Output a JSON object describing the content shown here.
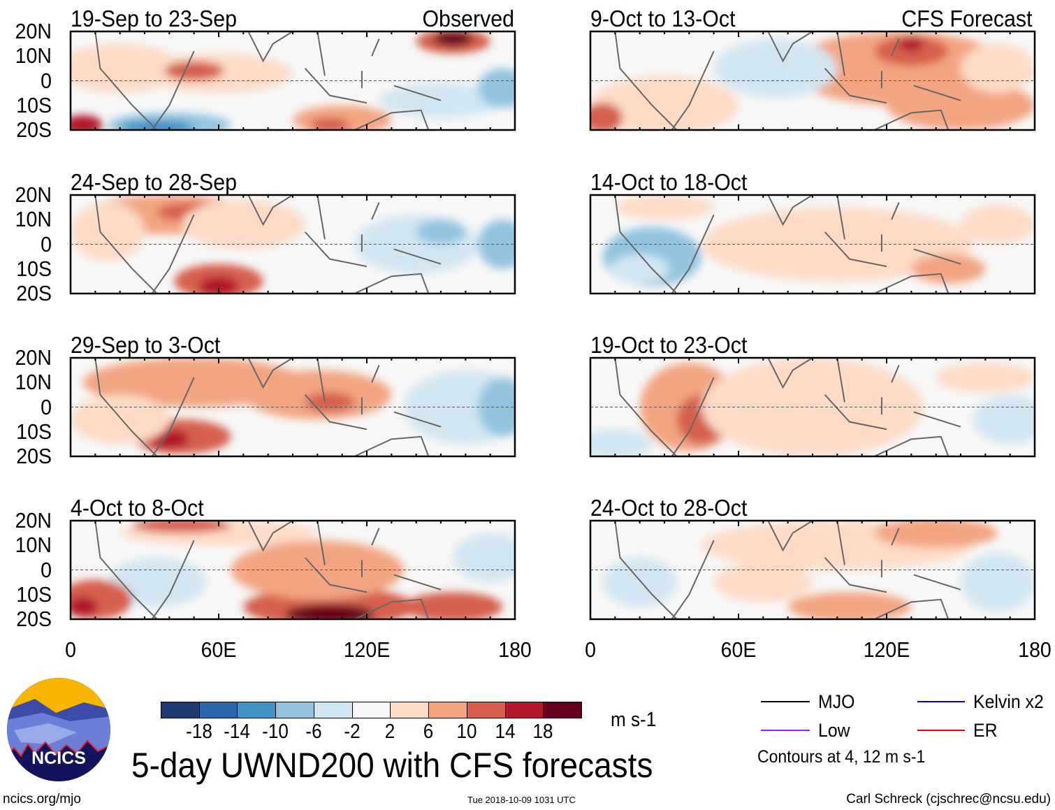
{
  "chart_data": {
    "type": "heatmap",
    "title": "5-day UWND200 with CFS forecasts",
    "variable": "200-hPa zonal wind anomaly",
    "units": "m s-1",
    "column_labels": {
      "left": "Observed",
      "right": "CFS Forecast"
    },
    "lat_ticks": [
      "20N",
      "10N",
      "0",
      "10S",
      "20S"
    ],
    "lon_ticks": [
      "0",
      "60E",
      "120E",
      "180"
    ],
    "xlim": [
      0,
      180
    ],
    "ylim": [
      -20,
      20
    ],
    "panels": [
      {
        "title": "19-Sep to 23-Sep",
        "column": "left"
      },
      {
        "title": "24-Sep to 28-Sep",
        "column": "left"
      },
      {
        "title": "29-Sep to 3-Oct",
        "column": "left"
      },
      {
        "title": "4-Oct to 8-Oct",
        "column": "left"
      },
      {
        "title": "9-Oct to 13-Oct",
        "column": "right"
      },
      {
        "title": "14-Oct to 18-Oct",
        "column": "right"
      },
      {
        "title": "19-Oct to 23-Oct",
        "column": "right"
      },
      {
        "title": "24-Oct to 28-Oct",
        "column": "right"
      }
    ],
    "colorbar": {
      "labels": [
        "-18",
        "-14",
        "-10",
        "-6",
        "-2",
        "2",
        "6",
        "10",
        "14",
        "18"
      ],
      "colors": [
        "#1f3a6e",
        "#2a67ad",
        "#4392c6",
        "#93c4df",
        "#d2e6f1",
        "#f7f7f7",
        "#fddbc7",
        "#f3a582",
        "#d6604d",
        "#b2182b",
        "#67001f"
      ],
      "units_label": "m s-1"
    },
    "legend": [
      {
        "label": "MJO",
        "color": "#000000"
      },
      {
        "label": "Kelvin x2",
        "color": "#0000ff"
      },
      {
        "label": "Low",
        "color": "#a020f0"
      },
      {
        "label": "ER",
        "color": "#ff0000"
      }
    ],
    "contour_note": "Contours at 4, 12 m s-1"
  },
  "footer": {
    "logo_text": "NCICS",
    "url": "ncics.org/mjo",
    "timestamp": "Tue 2018-10-09 1031 UTC",
    "author": "Carl Schreck (cjschrec@ncsu.edu)"
  }
}
